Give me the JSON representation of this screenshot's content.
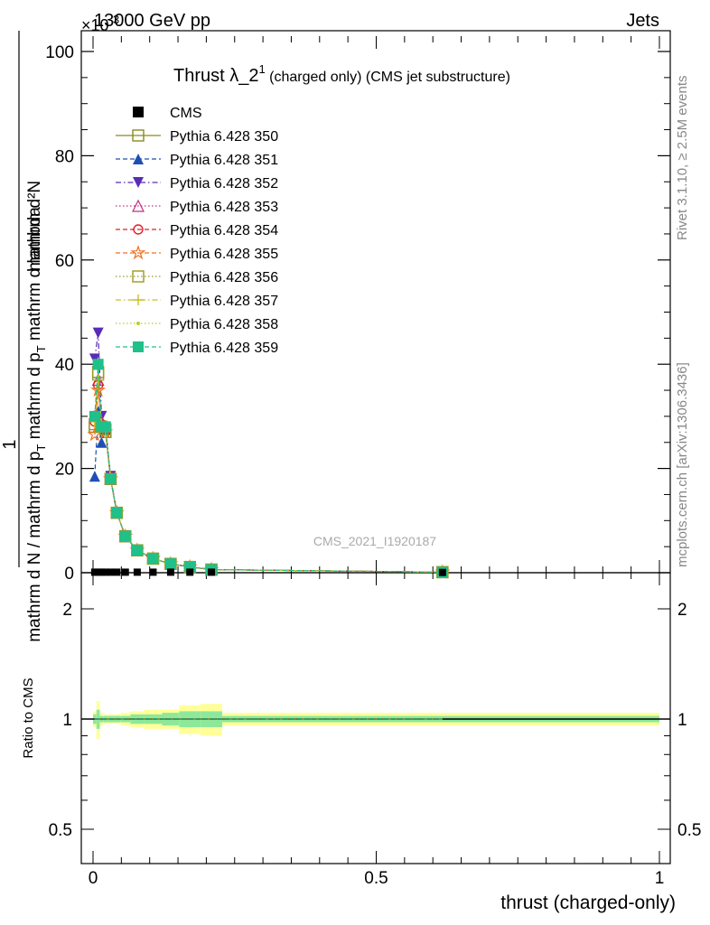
{
  "header": {
    "left": "13000 GeV pp",
    "right": "Jets",
    "exponent_label": "×10",
    "exponent_sup": "-3"
  },
  "title": {
    "main": "Thrust λ_2",
    "sup": "1",
    "sub": " (charged only) (CMS jet substructure)"
  },
  "side_labels": {
    "rivet": "Rivet 3.1.10, ≥ 2.5M events",
    "mcplots": "mcplots.cern.ch [arXiv:1306.3436]"
  },
  "watermark": "CMS_2021_I1920187",
  "axes": {
    "xlabel": "thrust (charged-only)",
    "ylabel_top_numer": "1",
    "ylabel_top_denom": "mathrm d N / mathrm d p_T mathrm d p_T mathrm d lambda",
    "ylabel_top_frac_num": "mathrm d²N",
    "ylabel_ratio": "Ratio to CMS",
    "x_ticks": [
      "0",
      "0.5",
      "1"
    ],
    "y_ticks_main": [
      "0",
      "20",
      "40",
      "60",
      "80",
      "100"
    ],
    "y_ticks_ratio": [
      "0.5",
      "1",
      "2"
    ]
  },
  "legend": [
    {
      "name": "CMS",
      "color": "#000000",
      "marker": "square-filled",
      "dash": "none"
    },
    {
      "name": "Pythia 6.428 350",
      "color": "#8a8a20",
      "marker": "square-open",
      "dash": "solid"
    },
    {
      "name": "Pythia 6.428 351",
      "color": "#1f4fb4",
      "marker": "triangle-up-filled",
      "dash": "dashed"
    },
    {
      "name": "Pythia 6.428 352",
      "color": "#5a2bb8",
      "marker": "triangle-down-filled",
      "dash": "dashdot"
    },
    {
      "name": "Pythia 6.428 353",
      "color": "#c0307f",
      "marker": "triangle-up-open",
      "dash": "dotted"
    },
    {
      "name": "Pythia 6.428 354",
      "color": "#e0202a",
      "marker": "circle-open",
      "dash": "dashed"
    },
    {
      "name": "Pythia 6.428 355",
      "color": "#f07020",
      "marker": "star",
      "dash": "dashed"
    },
    {
      "name": "Pythia 6.428 356",
      "color": "#9a9a20",
      "marker": "square-open",
      "dash": "dotted"
    },
    {
      "name": "Pythia 6.428 357",
      "color": "#c8c020",
      "marker": "plus-dot",
      "dash": "dashdot"
    },
    {
      "name": "Pythia 6.428 358",
      "color": "#b8d020",
      "marker": "dot",
      "dash": "dotted"
    },
    {
      "name": "Pythia 6.428 359",
      "color": "#20c08a",
      "marker": "square-filled",
      "dash": "dashed"
    }
  ],
  "chart_data": {
    "type": "line",
    "xlim": [
      0,
      1
    ],
    "ylim_main": [
      0,
      105
    ],
    "y_scale_note": "×10^-3",
    "ylim_ratio": [
      0.4,
      2.3
    ],
    "ratio_scale": "log",
    "cms": {
      "x": [
        0.003,
        0.009,
        0.015,
        0.022,
        0.031,
        0.042,
        0.057,
        0.078,
        0.106,
        0.137,
        0.171,
        0.209,
        0.617
      ],
      "y": [
        0.1,
        0.1,
        0.1,
        0.1,
        0.1,
        0.1,
        0.1,
        0.1,
        0.1,
        0.1,
        0.1,
        0.1,
        0.05
      ]
    },
    "series": [
      {
        "name": "Pythia 6.428 350",
        "x": [
          0.003,
          0.009,
          0.015,
          0.022,
          0.031,
          0.042,
          0.057,
          0.078,
          0.106,
          0.137,
          0.171,
          0.209,
          0.617
        ],
        "y": [
          28,
          38.5,
          28,
          27,
          18,
          11.5,
          7,
          4.3,
          2.7,
          1.7,
          1.1,
          0.6,
          0.1
        ]
      },
      {
        "name": "Pythia 6.428 351",
        "x": [
          0.003,
          0.009,
          0.015,
          0.022,
          0.031,
          0.042,
          0.057,
          0.078,
          0.106,
          0.137,
          0.171,
          0.209,
          0.617
        ],
        "y": [
          18.5,
          31,
          25,
          27.5,
          18,
          11.5,
          7,
          4.3,
          2.7,
          1.7,
          1.1,
          0.6,
          0.1
        ]
      },
      {
        "name": "Pythia 6.428 352",
        "x": [
          0.003,
          0.009,
          0.015,
          0.022,
          0.031,
          0.042,
          0.057,
          0.078,
          0.106,
          0.137,
          0.171,
          0.209,
          0.617
        ],
        "y": [
          41,
          46,
          30,
          28,
          18.5,
          11.5,
          7,
          4.3,
          2.7,
          1.7,
          1.1,
          0.6,
          0.1
        ]
      },
      {
        "name": "Pythia 6.428 353",
        "x": [
          0.003,
          0.009,
          0.015,
          0.022,
          0.031,
          0.042,
          0.057,
          0.078,
          0.106,
          0.137,
          0.171,
          0.209,
          0.617
        ],
        "y": [
          30,
          37,
          29,
          28,
          18,
          11.5,
          7,
          4.3,
          2.7,
          1.7,
          1.1,
          0.6,
          0.1
        ]
      },
      {
        "name": "Pythia 6.428 354",
        "x": [
          0.003,
          0.009,
          0.015,
          0.022,
          0.031,
          0.042,
          0.057,
          0.078,
          0.106,
          0.137,
          0.171,
          0.209,
          0.617
        ],
        "y": [
          29,
          36,
          28.5,
          28,
          18,
          11.5,
          7,
          4.3,
          2.7,
          1.7,
          1.1,
          0.6,
          0.1
        ]
      },
      {
        "name": "Pythia 6.428 355",
        "x": [
          0.003,
          0.009,
          0.015,
          0.022,
          0.031,
          0.042,
          0.057,
          0.078,
          0.106,
          0.137,
          0.171,
          0.209,
          0.617
        ],
        "y": [
          26.5,
          35,
          28,
          27,
          18,
          11.5,
          7,
          4.3,
          2.7,
          1.7,
          1.1,
          0.6,
          0.1
        ]
      },
      {
        "name": "Pythia 6.428 356",
        "x": [
          0.003,
          0.009,
          0.015,
          0.022,
          0.031,
          0.042,
          0.057,
          0.078,
          0.106,
          0.137,
          0.171,
          0.209,
          0.617
        ],
        "y": [
          28.5,
          38,
          28,
          27.5,
          18,
          11.5,
          7,
          4.3,
          2.7,
          1.7,
          1.1,
          0.6,
          0.1
        ]
      },
      {
        "name": "Pythia 6.428 357",
        "x": [
          0.003,
          0.009,
          0.015,
          0.022,
          0.031,
          0.042,
          0.057,
          0.078,
          0.106,
          0.137,
          0.171,
          0.209,
          0.617
        ],
        "y": [
          29,
          37,
          28.5,
          27.5,
          18,
          11.5,
          7,
          4.3,
          2.7,
          1.7,
          1.1,
          0.6,
          0.1
        ]
      },
      {
        "name": "Pythia 6.428 358",
        "x": [
          0.003,
          0.009,
          0.015,
          0.022,
          0.031,
          0.042,
          0.057,
          0.078,
          0.106,
          0.137,
          0.171,
          0.209,
          0.617
        ],
        "y": [
          29.5,
          37.5,
          28.5,
          27.5,
          18,
          11.5,
          7,
          4.3,
          2.7,
          1.7,
          1.1,
          0.6,
          0.1
        ]
      },
      {
        "name": "Pythia 6.428 359",
        "x": [
          0.003,
          0.009,
          0.015,
          0.022,
          0.031,
          0.042,
          0.057,
          0.078,
          0.106,
          0.137,
          0.171,
          0.209,
          0.617
        ],
        "y": [
          30,
          40,
          28,
          28,
          18,
          11.5,
          7,
          4.3,
          2.7,
          1.7,
          1.1,
          0.6,
          0.1
        ]
      }
    ],
    "ratio_bands": {
      "x_edges": [
        0,
        0.006,
        0.012,
        0.018,
        0.026,
        0.036,
        0.049,
        0.066,
        0.09,
        0.122,
        0.152,
        0.19,
        0.228,
        1.0
      ],
      "yellow_half": [
        0.05,
        0.12,
        0.04,
        0.03,
        0.03,
        0.03,
        0.04,
        0.05,
        0.06,
        0.06,
        0.09,
        0.1,
        0.04
      ],
      "green_half": [
        0.03,
        0.06,
        0.02,
        0.02,
        0.02,
        0.02,
        0.02,
        0.03,
        0.03,
        0.04,
        0.05,
        0.05,
        0.02
      ]
    },
    "ratio_line": 1
  }
}
